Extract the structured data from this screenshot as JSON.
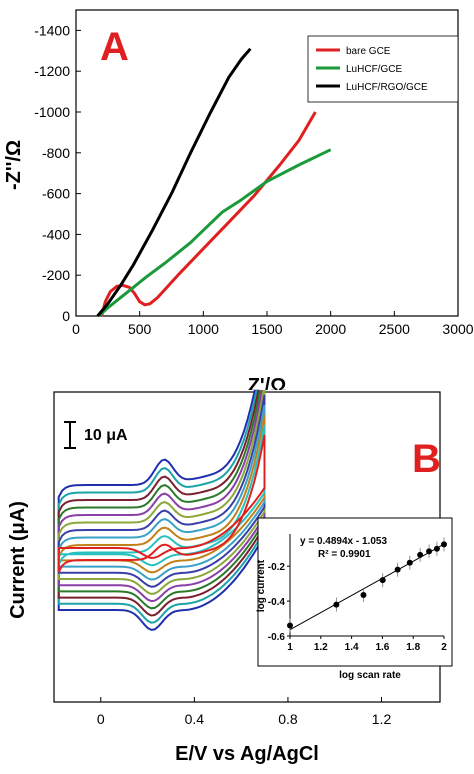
{
  "chart_data": [
    {
      "type": "line",
      "panel_label": "A",
      "xlabel": "Z'/Ω",
      "ylabel": "-Z''/Ω",
      "xlim": [
        0,
        3000
      ],
      "ylim": [
        0,
        -1500
      ],
      "xticks": [
        0,
        500,
        1000,
        1500,
        2000,
        2500,
        3000
      ],
      "yticks": [
        0,
        -200,
        -400,
        -600,
        -800,
        -1000,
        -1200,
        -1400
      ],
      "legend_position": "top-right",
      "colors": {
        "bare": "#e02020",
        "luhcf": "#1a9a3a",
        "rgo": "#000000"
      },
      "series": [
        {
          "name": "bare GCE",
          "color": "#e02020",
          "x": [
            200,
            230,
            270,
            320,
            370,
            420,
            460,
            500,
            540,
            580,
            640,
            800,
            1000,
            1200,
            1400,
            1600,
            1750,
            1880
          ],
          "y": [
            0,
            -70,
            -120,
            -145,
            -150,
            -140,
            -110,
            -70,
            -55,
            -60,
            -90,
            -200,
            -330,
            -460,
            -590,
            -740,
            -860,
            -1000
          ]
        },
        {
          "name": "LuHCF/GCE",
          "color": "#1a9a3a",
          "x": [
            180,
            250,
            350,
            450,
            550,
            700,
            900,
            1050,
            1150,
            1300,
            1500,
            1750,
            2000
          ],
          "y": [
            0,
            -40,
            -90,
            -140,
            -190,
            -260,
            -360,
            -450,
            -510,
            -570,
            -660,
            -740,
            -815
          ]
        },
        {
          "name": "LuHCF/RGO/GCE",
          "color": "#000000",
          "x": [
            170,
            250,
            350,
            450,
            600,
            750,
            900,
            1050,
            1200,
            1300,
            1370
          ],
          "y": [
            0,
            -60,
            -150,
            -250,
            -420,
            -600,
            -800,
            -990,
            -1170,
            -1260,
            -1310
          ]
        }
      ]
    },
    {
      "type": "line",
      "panel_label": "B",
      "xlabel": "E/V vs Ag/AgCl",
      "ylabel": "Current (μA)",
      "xlim": [
        -0.2,
        1.45
      ],
      "xticks": [
        0,
        0.4,
        0.8,
        1.2
      ],
      "xtick_labels": [
        "0",
        "0.4",
        "0.8",
        "1.2"
      ],
      "scale_bar": "10 μA",
      "cv_colors": [
        "#1f2fb0",
        "#1aa3a8",
        "#7a1f2f",
        "#2a7a2a",
        "#8a3fa8",
        "#8aa83a",
        "#3a3fa8",
        "#3aa0c8",
        "#c0801a",
        "#2ac0c0",
        "#e02020"
      ]
    },
    {
      "type": "scatter",
      "inset": true,
      "xlabel": "log scan rate",
      "ylabel": "log current",
      "xlim": [
        1,
        2
      ],
      "ylim": [
        -0.6,
        -0.05
      ],
      "xticks": [
        1,
        1.2,
        1.4,
        1.6,
        1.8,
        2
      ],
      "yticks": [
        -0.6,
        -0.4,
        -0.2
      ],
      "annotation_equation": "y = 0.4894x - 1.053",
      "annotation_r2": "R² = 0.9901",
      "x": [
        1.0,
        1.301,
        1.477,
        1.602,
        1.699,
        1.778,
        1.845,
        1.903,
        1.954,
        2.0
      ],
      "y": [
        -0.54,
        -0.42,
        -0.365,
        -0.28,
        -0.22,
        -0.18,
        -0.135,
        -0.115,
        -0.1,
        -0.075
      ],
      "fit": {
        "slope": 0.4894,
        "intercept": -1.053
      }
    }
  ]
}
